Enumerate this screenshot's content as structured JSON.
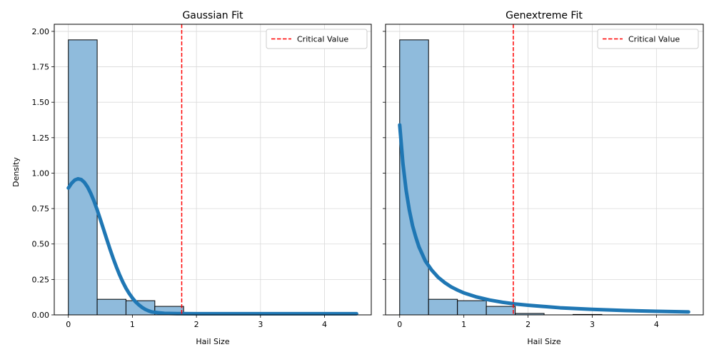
{
  "chart_data": [
    {
      "type": "bar",
      "title": "Gaussian Fit",
      "xlabel": "Hail Size",
      "ylabel": "Density",
      "xlim": [
        -0.22,
        4.73
      ],
      "ylim": [
        0,
        2.05
      ],
      "xticks": [
        "0",
        "1",
        "2",
        "3",
        "4"
      ],
      "yticks": [
        "0.00",
        "0.25",
        "0.50",
        "0.75",
        "1.00",
        "1.25",
        "1.50",
        "1.75",
        "2.00"
      ],
      "grid": true,
      "legend_position": "top-right",
      "histogram": {
        "bin_edges": [
          0,
          0.45,
          0.9,
          1.35,
          1.8
        ],
        "density": [
          1.94,
          0.11,
          0.1,
          0.06
        ],
        "color": "#8fbbdc"
      },
      "fit_curve": {
        "kind": "gaussian",
        "x": [
          0,
          0.05,
          0.1,
          0.15,
          0.2,
          0.25,
          0.3,
          0.35,
          0.4,
          0.45,
          0.5,
          0.55,
          0.6,
          0.65,
          0.7,
          0.75,
          0.8,
          0.85,
          0.9,
          0.95,
          1.0,
          1.05,
          1.1,
          1.15,
          1.2,
          1.25,
          1.3,
          1.4,
          1.5,
          1.7,
          2.0,
          3.0,
          4.0,
          4.5
        ],
        "y": [
          0.895,
          0.928,
          0.951,
          0.96,
          0.955,
          0.935,
          0.902,
          0.857,
          0.803,
          0.741,
          0.673,
          0.603,
          0.533,
          0.464,
          0.399,
          0.338,
          0.282,
          0.232,
          0.188,
          0.151,
          0.119,
          0.092,
          0.071,
          0.053,
          0.039,
          0.029,
          0.021,
          0.015,
          0.011,
          0.009,
          0.008,
          0.008,
          0.008,
          0.008
        ],
        "color": "#1f77b4"
      },
      "critical_value": {
        "x": 1.77,
        "label": "Critical Value",
        "color": "#ff0000"
      }
    },
    {
      "type": "bar",
      "title": "Genextreme Fit",
      "xlabel": "Hail Size",
      "ylabel": "",
      "xlim": [
        -0.22,
        4.73
      ],
      "ylim": [
        0,
        2.05
      ],
      "xticks": [
        "0",
        "1",
        "2",
        "3",
        "4"
      ],
      "yticks": [
        "",
        "",
        "",
        "",
        "",
        "",
        "",
        "",
        ""
      ],
      "grid": true,
      "legend_position": "top-right",
      "histogram": {
        "bin_edges": [
          0,
          0.45,
          0.9,
          1.35,
          1.8,
          2.25,
          2.7,
          3.15
        ],
        "density": [
          1.94,
          0.11,
          0.1,
          0.06,
          0.01,
          0.0,
          0.003
        ],
        "color": "#8fbbdc"
      },
      "fit_curve": {
        "kind": "genextreme",
        "x": [
          0,
          0.05,
          0.1,
          0.15,
          0.2,
          0.25,
          0.3,
          0.4,
          0.5,
          0.6,
          0.7,
          0.8,
          0.9,
          1.0,
          1.2,
          1.4,
          1.6,
          1.8,
          2.0,
          2.5,
          3.0,
          3.5,
          4.0,
          4.5
        ],
        "y": [
          1.34,
          1.07,
          0.88,
          0.74,
          0.63,
          0.55,
          0.48,
          0.38,
          0.315,
          0.265,
          0.228,
          0.198,
          0.175,
          0.155,
          0.126,
          0.105,
          0.089,
          0.077,
          0.068,
          0.05,
          0.039,
          0.031,
          0.025,
          0.021
        ],
        "color": "#1f77b4"
      },
      "critical_value": {
        "x": 1.77,
        "label": "Critical Value",
        "color": "#ff0000"
      }
    }
  ]
}
